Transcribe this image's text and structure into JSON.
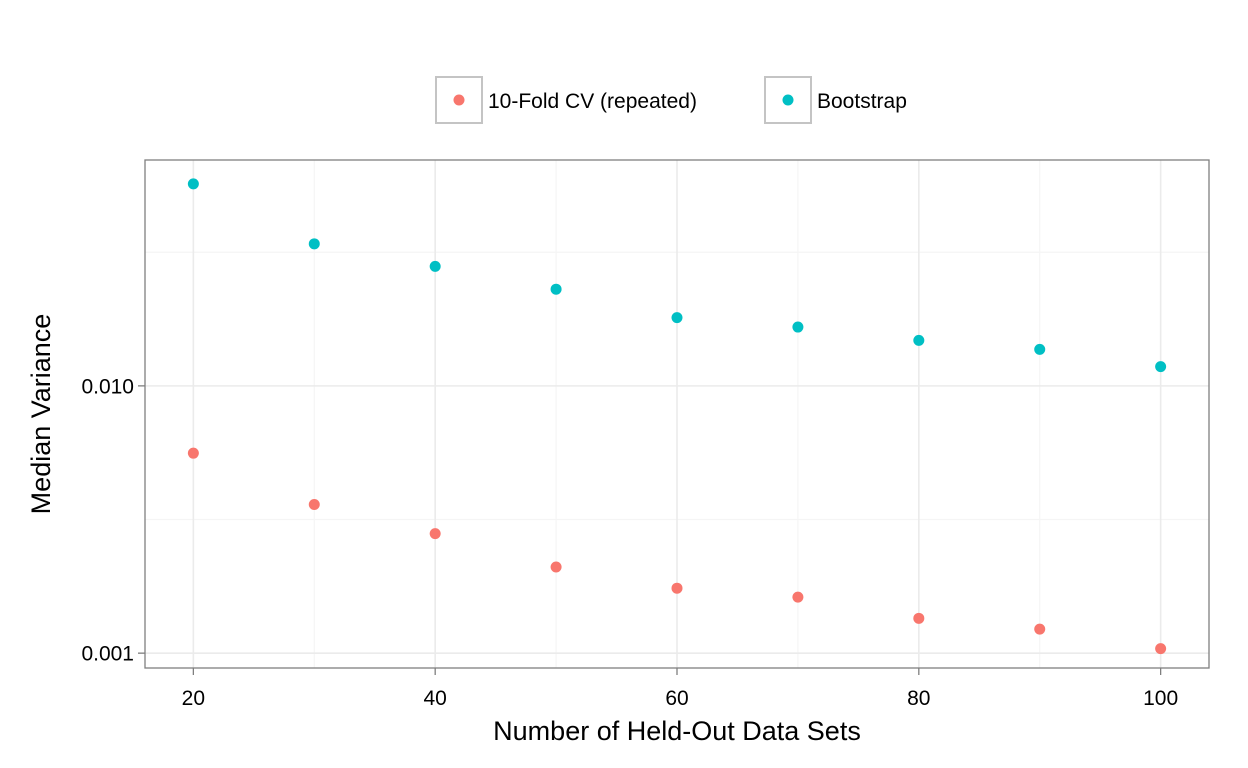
{
  "chart_data": {
    "type": "scatter",
    "title": "",
    "xlabel": "Number of Held-Out Data Sets",
    "ylabel": "Median Variance",
    "x_scale": "linear",
    "y_scale": "log10",
    "xlim": [
      16,
      104
    ],
    "ylim": [
      0.00088,
      0.07
    ],
    "x_ticks": [
      20,
      40,
      60,
      80,
      100
    ],
    "x_tick_labels": [
      "20",
      "40",
      "60",
      "80",
      "100"
    ],
    "y_ticks": [
      0.001,
      0.01
    ],
    "y_tick_labels": [
      "0.001",
      "0.010"
    ],
    "grid": true,
    "legend_position": "top",
    "x": [
      20,
      30,
      40,
      50,
      60,
      70,
      80,
      90,
      100
    ],
    "series": [
      {
        "name": "10-Fold CV (repeated)",
        "color": "#F8766D",
        "values": [
          0.0056,
          0.0036,
          0.0028,
          0.0021,
          0.00175,
          0.00162,
          0.00135,
          0.00123,
          0.00104
        ]
      },
      {
        "name": "Bootstrap",
        "color": "#00BFC4",
        "values": [
          0.057,
          0.034,
          0.028,
          0.023,
          0.018,
          0.0166,
          0.0148,
          0.0137,
          0.0118
        ]
      }
    ]
  }
}
